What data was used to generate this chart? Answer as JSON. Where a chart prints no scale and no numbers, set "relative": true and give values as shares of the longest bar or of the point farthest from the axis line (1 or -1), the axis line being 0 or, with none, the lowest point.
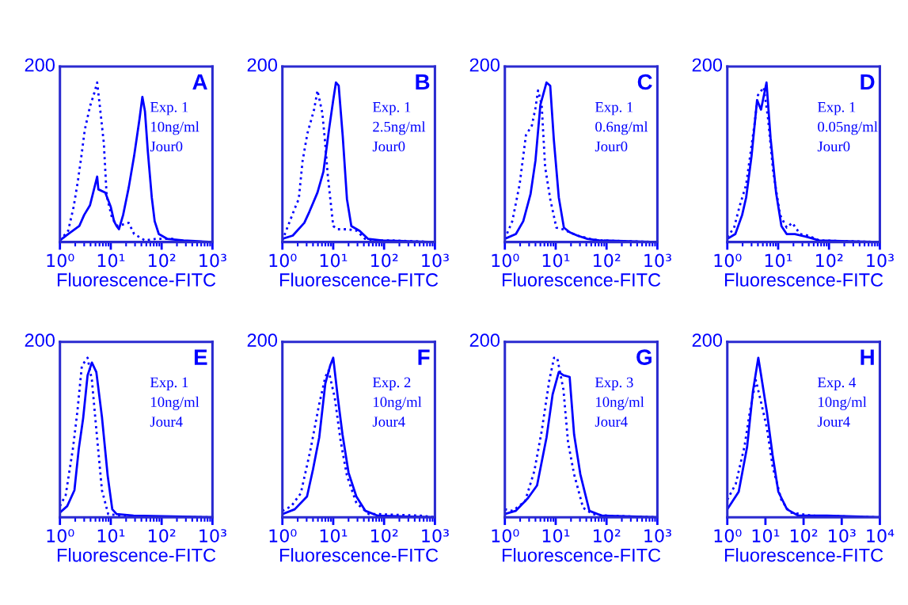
{
  "chart_data": [
    {
      "type": "line",
      "xlabel": "Fluorescence-FITC",
      "log": "x",
      "xlim": [
        1,
        1000
      ],
      "relative": true,
      "xticks": [
        {
          "value": 1,
          "label": "10⁰"
        },
        {
          "value": 10,
          "label": "10¹"
        },
        {
          "value": 100,
          "label": "10²"
        },
        {
          "value": 1000,
          "label": "10³"
        }
      ],
      "annotations": [
        "200",
        "A",
        "Exp. 1\n10ng/ml\nJour0"
      ],
      "series": [
        {
          "color": "#0000ff",
          "line_style": "solid",
          "x": [
            1,
            1.45,
            2.4,
            3.0,
            3.9,
            5.4,
            5.7,
            7.8,
            10,
            11.6,
            13,
            14.5,
            17.5,
            22.5,
            28.8,
            36.7,
            41.8,
            47,
            53.5,
            64,
            73,
            88,
            128,
            270,
            1000
          ],
          "values": [
            0.01,
            0.05,
            0.1,
            0.17,
            0.23,
            0.41,
            0.33,
            0.31,
            0.22,
            0.13,
            0.1,
            0.08,
            0.17,
            0.34,
            0.54,
            0.77,
            0.91,
            0.82,
            0.57,
            0.28,
            0.13,
            0.05,
            0.02,
            0.01,
            0
          ]
        },
        {
          "color": "#0000ff",
          "line_style": "dotted",
          "x": [
            1,
            1.45,
            1.86,
            2.25,
            2.7,
            3.07,
            3.9,
            4.7,
            5.4,
            6.1,
            7.3,
            8.3,
            10.6,
            13.6,
            22.5,
            28.8,
            47,
            78,
            165,
            270
          ],
          "values": [
            0.01,
            0.07,
            0.22,
            0.38,
            0.56,
            0.7,
            0.85,
            0.93,
            1,
            0.85,
            0.62,
            0.29,
            0.15,
            0.1,
            0.12,
            0.05,
            0.01,
            0.02,
            0.02,
            0
          ]
        }
      ]
    },
    {
      "type": "line",
      "xlabel": "Fluorescence-FITC",
      "log": "x",
      "xlim": [
        1,
        1000
      ],
      "relative": true,
      "xticks": [
        {
          "value": 1,
          "label": "10⁰"
        },
        {
          "value": 10,
          "label": "10¹"
        },
        {
          "value": 100,
          "label": "10²"
        },
        {
          "value": 1000,
          "label": "10³"
        }
      ],
      "annotations": [
        "200",
        "B",
        "Exp. 1\n2.5ng/ml\nJour0"
      ],
      "series": [
        {
          "color": "#0000ff",
          "line_style": "solid",
          "x": [
            1,
            1.6,
            2.7,
            3.4,
            4.9,
            6.4,
            8.3,
            10,
            11.3,
            12.8,
            15.4,
            18.6,
            22.7,
            33,
            48,
            90,
            1000
          ],
          "values": [
            0.02,
            0.04,
            0.12,
            0.19,
            0.31,
            0.44,
            0.71,
            0.89,
            1,
            0.98,
            0.66,
            0.27,
            0.1,
            0.07,
            0.02,
            0.01,
            0
          ]
        },
        {
          "color": "#0000ff",
          "line_style": "dotted",
          "x": [
            1,
            1.36,
            1.75,
            2.1,
            2.5,
            3.1,
            4.2,
            4.9,
            6.1,
            6.9,
            7.8,
            10,
            12,
            19.6,
            29,
            42,
            69,
            130,
            1000
          ],
          "values": [
            0.01,
            0.12,
            0.21,
            0.27,
            0.51,
            0.68,
            0.83,
            0.95,
            0.81,
            0.63,
            0.42,
            0.1,
            0.08,
            0.08,
            0.07,
            0.02,
            0.01,
            0.01,
            0
          ]
        }
      ]
    },
    {
      "type": "line",
      "xlabel": "Fluorescence-FITC",
      "log": "x",
      "xlim": [
        1,
        1000
      ],
      "relative": true,
      "xticks": [
        {
          "value": 1,
          "label": "10⁰"
        },
        {
          "value": 10,
          "label": "10¹"
        },
        {
          "value": 100,
          "label": "10²"
        },
        {
          "value": 1000,
          "label": "10³"
        }
      ],
      "annotations": [
        "200",
        "C",
        "Exp. 1\n0.6ng/ml\nJour0"
      ],
      "series": [
        {
          "color": "#0000ff",
          "line_style": "solid",
          "x": [
            1,
            1.65,
            2.3,
            3.2,
            4.0,
            5.0,
            6.6,
            7.8,
            9.2,
            11.5,
            14.5,
            19.1,
            26.7,
            41.8,
            73,
            1000
          ],
          "values": [
            0.02,
            0.05,
            0.13,
            0.3,
            0.51,
            0.86,
            1,
            0.98,
            0.64,
            0.28,
            0.09,
            0.06,
            0.04,
            0.02,
            0.01,
            0
          ]
        },
        {
          "color": "#0000ff",
          "line_style": "dotted",
          "x": [
            1,
            1.4,
            1.95,
            2.6,
            3.4,
            4.0,
            4.5,
            5.3,
            6.2,
            7.8,
            10.3,
            13.7,
            19,
            27,
            47,
            73,
            1000
          ],
          "values": [
            0.02,
            0.13,
            0.36,
            0.67,
            0.73,
            0.84,
            0.95,
            0.86,
            0.47,
            0.27,
            0.09,
            0.08,
            0.06,
            0.04,
            0.02,
            0.01,
            0
          ]
        }
      ]
    },
    {
      "type": "line",
      "xlabel": "Fluorescence-FITC",
      "log": "x",
      "xlim": [
        1,
        1000
      ],
      "relative": true,
      "xticks": [
        {
          "value": 1,
          "label": "10⁰"
        },
        {
          "value": 10,
          "label": "10¹"
        },
        {
          "value": 100,
          "label": "10²"
        },
        {
          "value": 1000,
          "label": "10³"
        }
      ],
      "annotations": [
        "200",
        "D",
        "Exp. 1\n0.05ng/ml\nJour0"
      ],
      "series": [
        {
          "color": "#0000ff",
          "line_style": "solid",
          "x": [
            1,
            1.44,
            1.96,
            2.35,
            3.0,
            3.85,
            4.6,
            5.9,
            7.1,
            9.1,
            11.6,
            14.7,
            21.3,
            39,
            64,
            1000
          ],
          "values": [
            0.02,
            0.05,
            0.17,
            0.28,
            0.54,
            0.89,
            0.83,
            1,
            0.65,
            0.31,
            0.1,
            0.05,
            0.05,
            0.03,
            0.01,
            0
          ]
        },
        {
          "color": "#0000ff",
          "line_style": "dotted",
          "x": [
            1,
            1.36,
            1.73,
            2.35,
            3.4,
            4.0,
            5.2,
            6.3,
            8.0,
            10.9,
            14.7,
            18.9,
            27,
            39,
            64,
            1000
          ],
          "values": [
            0.03,
            0.09,
            0.22,
            0.36,
            0.73,
            0.92,
            0.97,
            0.78,
            0.44,
            0.17,
            0.09,
            0.12,
            0.05,
            0.04,
            0.01,
            0
          ]
        }
      ]
    },
    {
      "type": "line",
      "xlabel": "Fluorescence-FITC",
      "log": "x",
      "xlim": [
        1,
        1000
      ],
      "relative": true,
      "xticks": [
        {
          "value": 1,
          "label": "10⁰"
        },
        {
          "value": 10,
          "label": "10¹"
        },
        {
          "value": 100,
          "label": "10²"
        },
        {
          "value": 1000,
          "label": "10³"
        }
      ],
      "annotations": [
        "200",
        "E",
        "Exp. 1\n10ng/ml\nJour4"
      ],
      "series": [
        {
          "color": "#0000ff",
          "line_style": "solid",
          "x": [
            1,
            1.39,
            1.93,
            2.35,
            2.86,
            3.5,
            4.25,
            5.2,
            6.7,
            8.7,
            10.7,
            13,
            28,
            1000
          ],
          "values": [
            0.03,
            0.07,
            0.17,
            0.43,
            0.62,
            0.89,
            0.97,
            0.91,
            0.63,
            0.26,
            0.05,
            0.02,
            0.01,
            0
          ]
        },
        {
          "color": "#0000ff",
          "line_style": "dotted",
          "x": [
            1,
            1.3,
            1.8,
            2.2,
            2.7,
            3.5,
            4.25,
            5.2,
            6.7,
            8.9,
            15.5,
            57,
            1000
          ],
          "values": [
            0.07,
            0.14,
            0.43,
            0.66,
            0.95,
            1,
            0.86,
            0.55,
            0.17,
            0.02,
            0.01,
            0,
            0
          ]
        }
      ]
    },
    {
      "type": "line",
      "xlabel": "Fluorescence-FITC",
      "log": "x",
      "xlim": [
        1,
        1000
      ],
      "relative": true,
      "xticks": [
        {
          "value": 1,
          "label": "10⁰"
        },
        {
          "value": 10,
          "label": "10¹"
        },
        {
          "value": 100,
          "label": "10²"
        },
        {
          "value": 1000,
          "label": "10³"
        }
      ],
      "annotations": [
        "200",
        "F",
        "Exp. 2\n10ng/ml\nJour4"
      ],
      "series": [
        {
          "color": "#0000ff",
          "line_style": "solid",
          "x": [
            1,
            1.75,
            3.05,
            4.0,
            5.3,
            7.0,
            8.7,
            10,
            12.3,
            15.2,
            20,
            28.5,
            43,
            75,
            1000
          ],
          "values": [
            0.02,
            0.05,
            0.13,
            0.3,
            0.5,
            0.84,
            0.95,
            1,
            0.75,
            0.52,
            0.28,
            0.13,
            0.04,
            0.01,
            0
          ]
        },
        {
          "color": "#0000ff",
          "line_style": "dotted",
          "x": [
            1,
            1.5,
            2.3,
            3.5,
            5.3,
            7,
            8.1,
            10.7,
            14.1,
            18.6,
            28.5,
            50,
            75,
            530,
            1000
          ],
          "values": [
            0.04,
            0.07,
            0.15,
            0.41,
            0.71,
            0.88,
            0.92,
            0.75,
            0.47,
            0.26,
            0.09,
            0.02,
            0.02,
            0.01,
            0
          ]
        }
      ]
    },
    {
      "type": "line",
      "xlabel": "Fluorescence-FITC",
      "log": "x",
      "xlim": [
        1,
        1000
      ],
      "relative": true,
      "xticks": [
        {
          "value": 1,
          "label": "10⁰"
        },
        {
          "value": 10,
          "label": "10¹"
        },
        {
          "value": 100,
          "label": "10²"
        },
        {
          "value": 1000,
          "label": "10³"
        }
      ],
      "annotations": [
        "200",
        "G",
        "Exp. 3\n10ng/ml\nJour4"
      ],
      "series": [
        {
          "color": "#0000ff",
          "line_style": "solid",
          "x": [
            1,
            1.63,
            2.85,
            4.3,
            6.6,
            8.7,
            11.5,
            14.2,
            18.8,
            23,
            30.5,
            46,
            81,
            1000
          ],
          "values": [
            0.02,
            0.04,
            0.12,
            0.2,
            0.5,
            0.77,
            0.91,
            0.89,
            0.88,
            0.52,
            0.27,
            0.04,
            0.01,
            0
          ]
        },
        {
          "color": "#0000ff",
          "line_style": "dotted",
          "x": [
            1,
            1.42,
            2.5,
            3.8,
            5.3,
            7.5,
            9.3,
            10.7,
            14.2,
            17.5,
            23,
            34.5,
            53,
            107,
            1000
          ],
          "values": [
            0.05,
            0.04,
            0.1,
            0.29,
            0.54,
            0.86,
            1,
            1,
            0.8,
            0.47,
            0.27,
            0.06,
            0.02,
            0.01,
            0
          ]
        }
      ]
    },
    {
      "type": "line",
      "xlabel": "Fluorescence-FITC",
      "log": "x",
      "xlim": [
        1,
        10000
      ],
      "relative": true,
      "xticks": [
        {
          "value": 1,
          "label": "10⁰"
        },
        {
          "value": 10,
          "label": "10¹"
        },
        {
          "value": 100,
          "label": "10²"
        },
        {
          "value": 1000,
          "label": "10³"
        },
        {
          "value": 10000,
          "label": "10⁴"
        }
      ],
      "annotations": [
        "200",
        "H",
        "Exp. 4\n10ng/ml\nJour4"
      ],
      "series": [
        {
          "color": "#0000ff",
          "line_style": "solid",
          "x": [
            1,
            1.99,
            3.3,
            4.7,
            6.5,
            7.7,
            10.9,
            15.4,
            21.8,
            36.7,
            73,
            410,
            10000
          ],
          "values": [
            0.05,
            0.16,
            0.44,
            0.79,
            1,
            0.89,
            0.66,
            0.39,
            0.16,
            0.05,
            0.01,
            0.01,
            0
          ]
        },
        {
          "color": "#0000ff",
          "line_style": "dotted",
          "x": [
            1,
            1.67,
            2.8,
            3.9,
            5.6,
            7.7,
            10.9,
            15.4,
            26,
            43.6,
            172,
            10000
          ],
          "values": [
            0.11,
            0.21,
            0.44,
            0.66,
            0.86,
            0.72,
            0.56,
            0.32,
            0.11,
            0.03,
            0.01,
            0
          ]
        }
      ]
    }
  ]
}
